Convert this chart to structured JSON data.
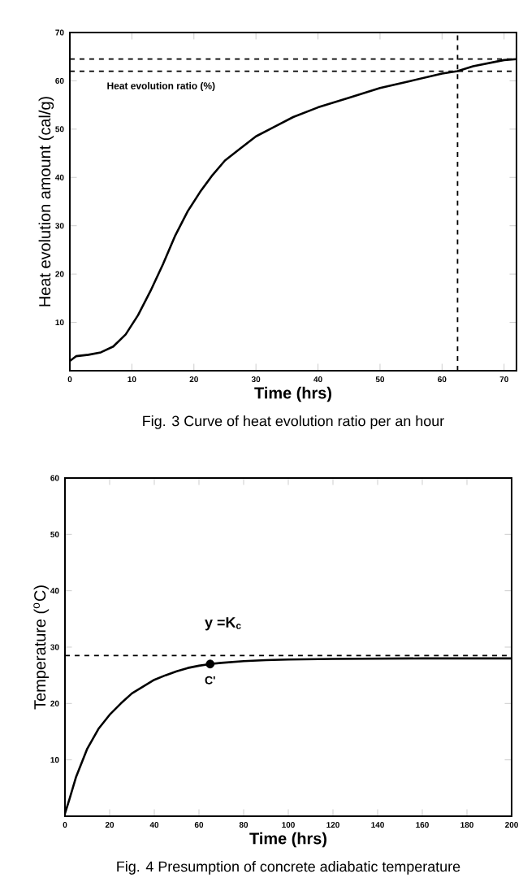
{
  "chart_data": [
    {
      "type": "line",
      "title": "Fig. 3 Curve of heat evolution ratio per an hour",
      "xlabel": "Time (hrs)",
      "ylabel": "Heat evolution amount (cal/g)",
      "x": [
        0,
        1,
        3,
        5,
        7,
        9,
        11,
        13,
        15,
        17,
        19,
        21,
        23,
        25,
        27,
        30,
        33,
        36,
        40,
        45,
        50,
        55,
        60,
        62.5,
        65,
        70,
        72
      ],
      "series": [
        {
          "color": "#000000",
          "values": [
            2,
            3,
            3.3,
            3.8,
            5,
            7.5,
            11.5,
            16.5,
            22,
            28,
            33,
            37,
            40.5,
            43.5,
            45.5,
            48.5,
            50.5,
            52.5,
            54.5,
            56.5,
            58.5,
            60,
            61.5,
            62,
            63,
            64.3,
            64.5
          ]
        }
      ],
      "xlim": [
        0,
        72
      ],
      "ylim": [
        0,
        70
      ],
      "xticks": [
        0,
        10,
        20,
        30,
        40,
        50,
        60,
        70
      ],
      "yticks": [
        {
          "value": 0,
          "label": null
        },
        10,
        20,
        30,
        40,
        50,
        60,
        70
      ],
      "ref_lines": [
        {
          "axis": "y",
          "value": 64.5,
          "line_style": "dashed"
        },
        {
          "axis": "y",
          "value": 62,
          "line_style": "dashed"
        },
        {
          "axis": "x",
          "value": 62.5,
          "line_style": "dashed"
        }
      ],
      "annotations": [
        "Heat evolution ratio (%)"
      ],
      "grid": false,
      "marker": "none",
      "line_style": "solid"
    },
    {
      "type": "line",
      "title": "Fig. 4 Presumption of concrete adiabatic temperature",
      "xlabel": "Time (hrs)",
      "ylabel": "Temperature ($^{o}$C)",
      "x": [
        0,
        2,
        5,
        10,
        15,
        20,
        25,
        30,
        35,
        40,
        45,
        50,
        55,
        60,
        65,
        70,
        80,
        90,
        100,
        120,
        160,
        200
      ],
      "series": [
        {
          "color": "#000000",
          "values": [
            0.5,
            3,
            7,
            12,
            15.5,
            18,
            20,
            21.8,
            23,
            24.2,
            25,
            25.7,
            26.3,
            26.7,
            27,
            27.2,
            27.5,
            27.7,
            27.8,
            27.9,
            28,
            28
          ]
        },
        {
          "type": "scatter",
          "color": "#000000",
          "x": [
            65
          ],
          "values": [
            27
          ]
        }
      ],
      "xlim": [
        0,
        200
      ],
      "ylim": [
        0,
        60
      ],
      "xticks": [
        0,
        20,
        40,
        60,
        80,
        100,
        120,
        140,
        160,
        180,
        200
      ],
      "yticks": [
        {
          "value": 0,
          "label": null
        },
        10,
        20,
        30,
        40,
        50,
        60
      ],
      "ref_lines": [
        {
          "axis": "y",
          "value": 28.5,
          "line_style": "dashed",
          "label": "y =K$_{c}$"
        }
      ],
      "annotations": [
        {
          "text": "C'",
          "x": 65,
          "y": 27
        }
      ],
      "grid": false,
      "line_style": "solid"
    }
  ]
}
